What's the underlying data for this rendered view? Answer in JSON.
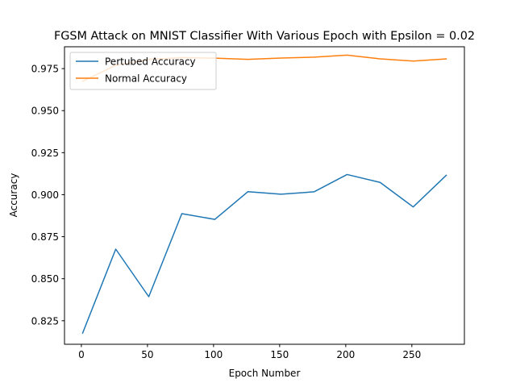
{
  "chart_data": {
    "type": "line",
    "title": "FGSM Attack on MNIST Classifier With Various Epoch with Epsilon = 0.02",
    "xlabel": "Epoch Number",
    "ylabel": "Accuracy",
    "x": [
      1,
      26,
      51,
      76,
      101,
      126,
      151,
      176,
      201,
      226,
      251,
      276
    ],
    "xlim": [
      -12.75,
      289.75
    ],
    "ylim": [
      0.811,
      0.988
    ],
    "xticks": [
      0,
      50,
      100,
      150,
      200,
      250
    ],
    "yticks": [
      0.825,
      0.85,
      0.875,
      0.9,
      0.925,
      0.95,
      0.975
    ],
    "series": [
      {
        "name": "Pertubed Accuracy",
        "color": "#1f77b4",
        "values": [
          0.8177,
          0.8676,
          0.8393,
          0.8887,
          0.8853,
          0.9018,
          0.9003,
          0.9017,
          0.912,
          0.9073,
          0.8927,
          0.9115
        ]
      },
      {
        "name": "Normal Accuracy",
        "color": "#ff7f0e",
        "values": [
          0.9675,
          0.977,
          0.9805,
          0.9815,
          0.9812,
          0.9805,
          0.9813,
          0.9818,
          0.983,
          0.9808,
          0.9795,
          0.9808
        ]
      }
    ],
    "legend_position": "upper-left",
    "grid": false
  }
}
